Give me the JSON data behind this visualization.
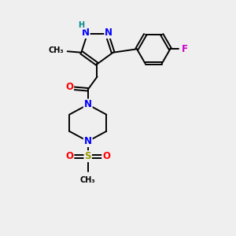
{
  "background_color": "#efefef",
  "bond_color": "#000000",
  "atom_colors": {
    "N": "#0000ff",
    "O": "#ff0000",
    "F": "#cc00cc",
    "H": "#008888",
    "S": "#999900",
    "C": "#000000"
  },
  "font_size_atom": 8.5,
  "font_size_small": 7.0,
  "lw": 1.4
}
